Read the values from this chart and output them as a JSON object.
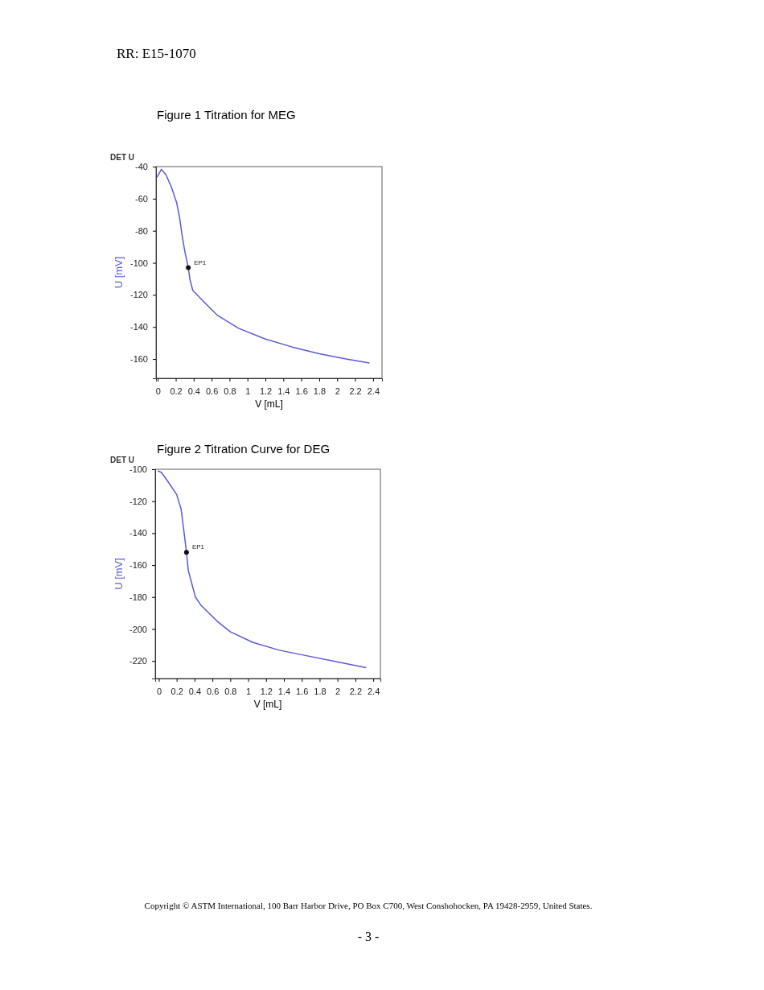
{
  "chart_data": [
    {
      "type": "line",
      "title": "Figure 1 Titration for MEG",
      "subtitle": "DET U",
      "xlabel": "V [mL]",
      "ylabel": "U [mV]",
      "xlim": [
        -0.02,
        2.5
      ],
      "ylim": [
        -172,
        -40
      ],
      "xticks": [
        0,
        0.2,
        0.4,
        0.6,
        0.8,
        1,
        1.2,
        1.4,
        1.6,
        1.8,
        2,
        2.2,
        2.4
      ],
      "yticks": [
        -40,
        -60,
        -80,
        -100,
        -120,
        -140,
        -160
      ],
      "grid": false,
      "line_style": "solid",
      "annotations": [
        "RR: E15-1070",
        {
          "text": "EP1",
          "x": 0.34,
          "y": -103
        }
      ],
      "series": [
        {
          "color": "#5a5ad8",
          "marker": "none",
          "x": [
            -0.01,
            0.04,
            0.09,
            0.15,
            0.21,
            0.24,
            0.27,
            0.3,
            0.34,
            0.36,
            0.39,
            0.54,
            0.66,
            0.9,
            1.2,
            1.5,
            1.8,
            2.1,
            2.36
          ],
          "values": [
            -46.7,
            -41.7,
            -45,
            -52.5,
            -62.5,
            -70.8,
            -82.5,
            -92.5,
            -103,
            -110.8,
            -117.2,
            -125.8,
            -132.5,
            -140.8,
            -147.5,
            -152.5,
            -156.7,
            -160,
            -162.5
          ]
        },
        {
          "type": "scatter",
          "color": "#111111",
          "marker": "circle",
          "x": [
            0.34
          ],
          "values": [
            -103
          ]
        }
      ]
    },
    {
      "type": "line",
      "title": "Figure 2 Titration Curve for DEG",
      "subtitle": "DET U",
      "xlabel": "V [mL]",
      "ylabel": "U [mV]",
      "xlim": [
        -0.04,
        2.48
      ],
      "ylim": [
        -231,
        -100
      ],
      "xticks": [
        0,
        0.2,
        0.4,
        0.6,
        0.8,
        1,
        1.2,
        1.4,
        1.6,
        1.8,
        2,
        2.2,
        2.4
      ],
      "yticks": [
        -100,
        -120,
        -140,
        -160,
        -180,
        -200,
        -220
      ],
      "grid": false,
      "line_style": "solid",
      "annotations": [
        {
          "text": "EP1",
          "x": 0.31,
          "y": -152
        },
        "Copyright © ASTM International, 100 Barr Harbor Drive, PO Box C700, West Conshohocken, PA 19428-2959, United States.",
        "- 3 -"
      ],
      "series": [
        {
          "color": "#5a5ad8",
          "marker": "none",
          "x": [
            -0.01,
            0.03,
            0.11,
            0.2,
            0.25,
            0.28,
            0.31,
            0.33,
            0.37,
            0.41,
            0.47,
            0.65,
            0.8,
            1.05,
            1.35,
            1.65,
            1.95,
            2.32
          ],
          "values": [
            -101,
            -102,
            -108.3,
            -115.8,
            -125,
            -138.3,
            -152,
            -163.3,
            -171.7,
            -180,
            -185,
            -195,
            -201.7,
            -208.3,
            -213.3,
            -216.7,
            -220,
            -224.2
          ]
        },
        {
          "type": "scatter",
          "color": "#111111",
          "marker": "circle",
          "x": [
            0.31
          ],
          "values": [
            -152
          ]
        }
      ]
    }
  ]
}
